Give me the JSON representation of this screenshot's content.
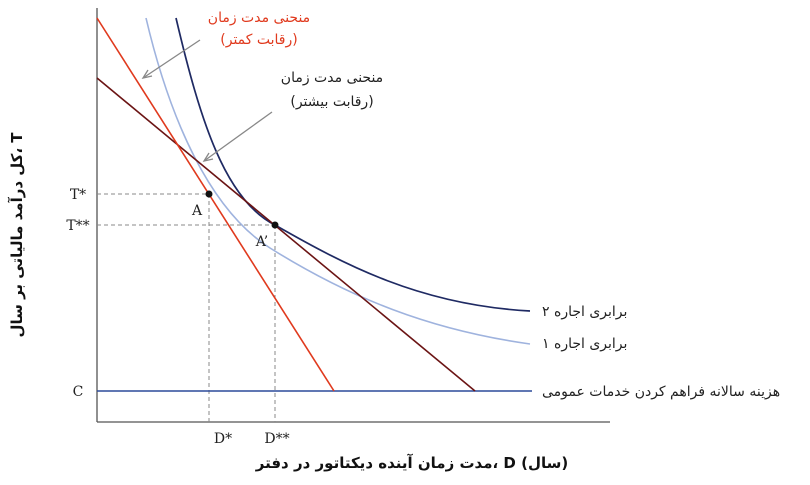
{
  "axes": {
    "x_title": "مدت زمان آینده دیکتاتور در دفتر، D (سال)",
    "y_title": "کل درآمد مالیاتی بر سال، T"
  },
  "y_labels": {
    "t_star": "T*",
    "t_double_star": "T**",
    "c": "C"
  },
  "x_labels": {
    "d_star": "D*",
    "d_double_star": "D**"
  },
  "points": {
    "a": "A",
    "a_prime": "A’"
  },
  "curve_labels": {
    "rent_equal_2": "برابری اجاره ۲",
    "rent_equal_1": "برابری اجاره ۱",
    "public_services_cost": "هزینه سالانه فراهم کردن خدمات عمومی"
  },
  "annotations": {
    "duration_less_competition_line1": "منحنی مدت زمان",
    "duration_less_competition_line2": "(رقابت کمتر)",
    "duration_more_competition_line1": "منحنی مدت زمان",
    "duration_more_competition_line2": "(رقابت بیشتر)"
  },
  "colors": {
    "axis": "#555555",
    "red_curve": "#e03a1e",
    "dark_red_curve": "#6b1414",
    "navy_curve": "#1f2a63",
    "light_blue_curve": "#9fb3de",
    "horizontal_line": "#2c4a9a",
    "guide": "#888888",
    "red_text": "#e03a1e"
  }
}
